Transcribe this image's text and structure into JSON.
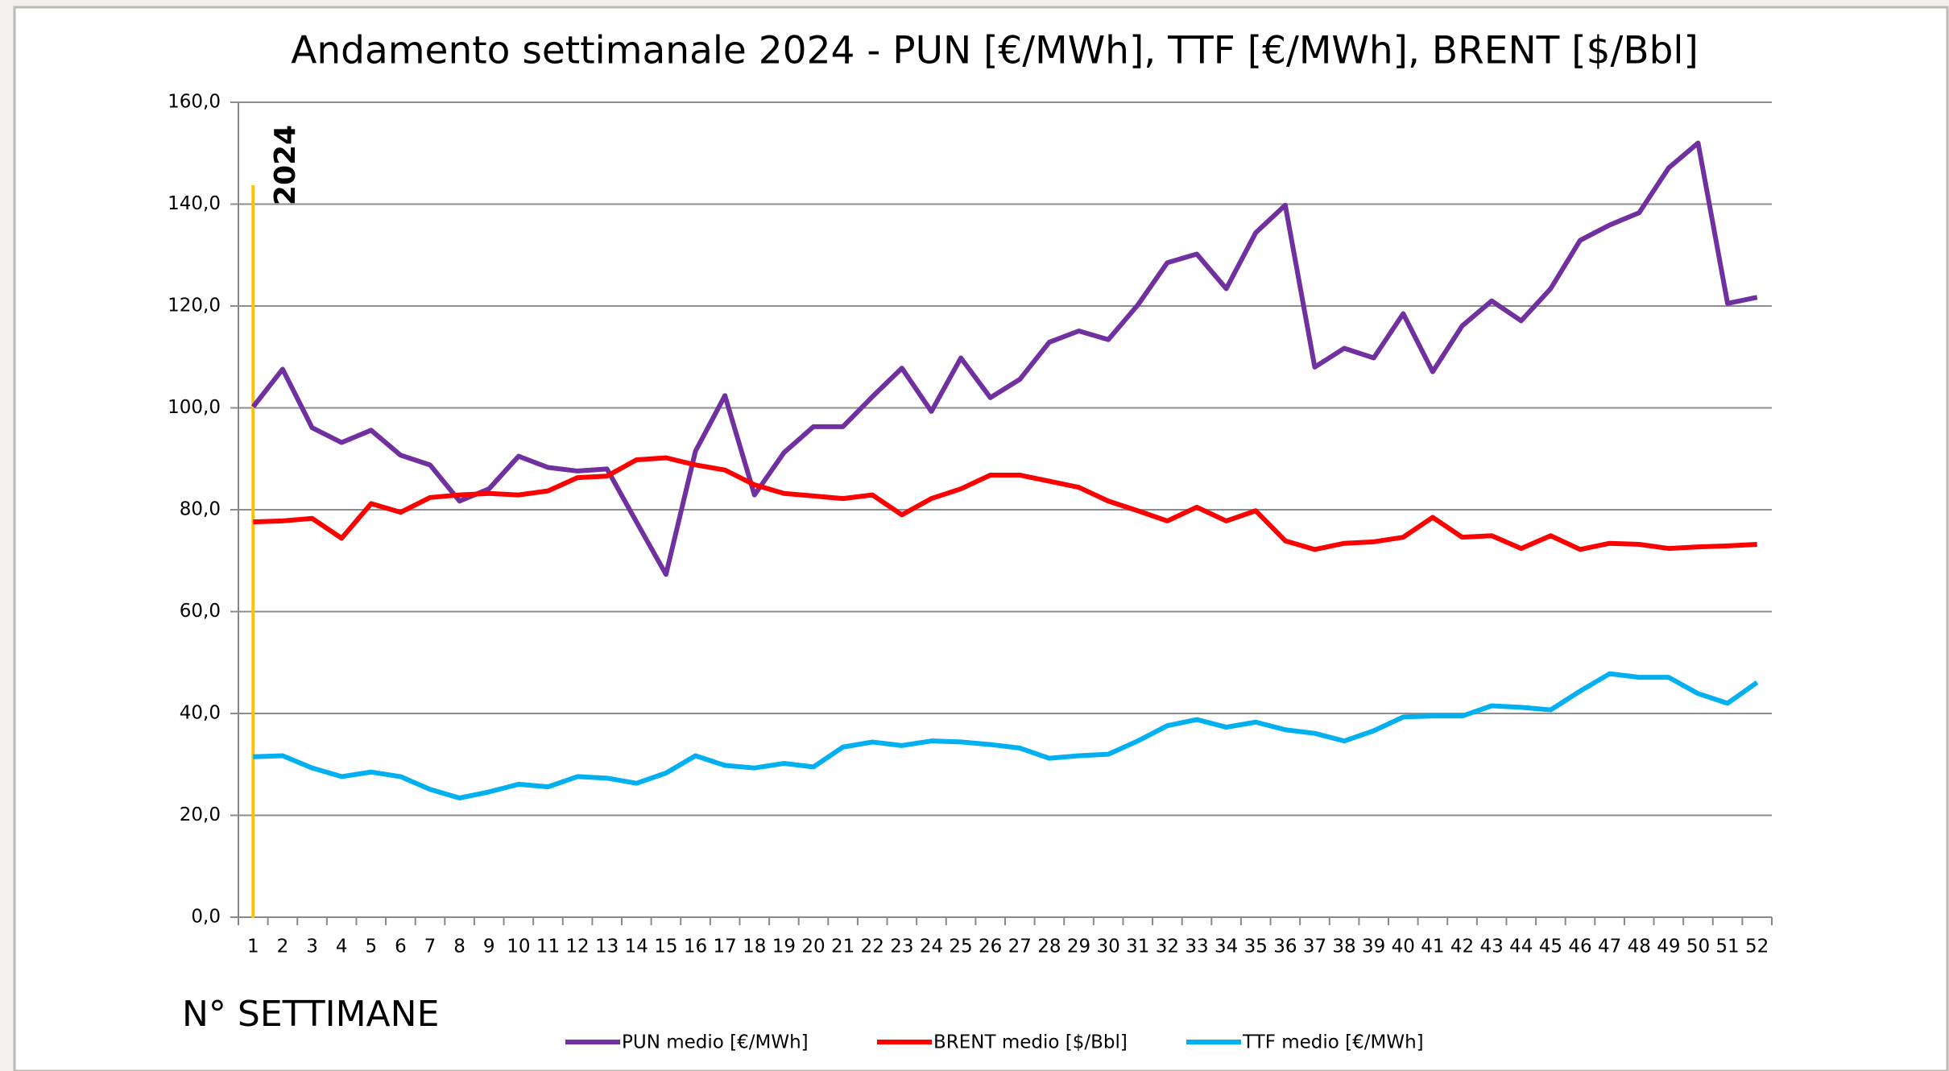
{
  "chart_data": {
    "type": "line",
    "title": "Andamento settimanale 2024 - PUN [€/MWh], TTF [€/MWh], BRENT [$/Bbl]",
    "x_label": "N° SETTIMANE",
    "annotation": "2024",
    "categories": [
      1,
      2,
      3,
      4,
      5,
      6,
      7,
      8,
      9,
      10,
      11,
      12,
      13,
      14,
      15,
      16,
      17,
      18,
      19,
      20,
      21,
      22,
      23,
      24,
      25,
      26,
      27,
      28,
      29,
      30,
      31,
      32,
      33,
      34,
      35,
      36,
      37,
      38,
      39,
      40,
      41,
      42,
      43,
      44,
      45,
      46,
      47,
      48,
      49,
      50,
      51,
      52
    ],
    "series": [
      {
        "name": "PUN medio [€/MWh]",
        "color": "#7030a0",
        "values": [
          100.2,
          107.6,
          96.1,
          93.2,
          95.6,
          90.7,
          88.8,
          81.7,
          84.1,
          90.5,
          88.3,
          87.6,
          88.0,
          77.6,
          67.3,
          91.5,
          102.4,
          82.9,
          91.2,
          96.3,
          96.3,
          102.2,
          107.8,
          99.3,
          109.8,
          102.0,
          105.6,
          112.9,
          115.1,
          113.4,
          120.2,
          128.5,
          130.2,
          123.4,
          134.4,
          139.8,
          108.0,
          111.7,
          109.8,
          118.5,
          107.1,
          116.1,
          121.0,
          117.1,
          123.4,
          132.9,
          135.9,
          138.3,
          147.1,
          152.0,
          120.5,
          121.7
        ]
      },
      {
        "name": "BRENT medio [$/Bbl]",
        "color": "#ff0000",
        "values": [
          77.6,
          77.8,
          78.3,
          74.4,
          81.2,
          79.5,
          82.4,
          82.9,
          83.2,
          82.9,
          83.7,
          86.3,
          86.6,
          89.8,
          90.2,
          88.8,
          87.8,
          84.9,
          83.2,
          82.7,
          82.2,
          82.9,
          79.0,
          82.2,
          84.1,
          86.8,
          86.8,
          85.6,
          84.4,
          81.7,
          79.8,
          77.8,
          80.5,
          77.8,
          79.8,
          73.9,
          72.2,
          73.4,
          73.7,
          74.6,
          78.5,
          74.6,
          74.9,
          72.4,
          74.9,
          72.2,
          73.4,
          73.2,
          72.4,
          72.7,
          72.9,
          73.2
        ]
      },
      {
        "name": "TTF medio [€/MWh]",
        "color": "#00b0f0",
        "values": [
          31.5,
          31.7,
          29.3,
          27.6,
          28.5,
          27.6,
          25.1,
          23.4,
          24.6,
          26.1,
          25.6,
          27.6,
          27.3,
          26.3,
          28.3,
          31.7,
          29.8,
          29.3,
          30.2,
          29.5,
          33.4,
          34.4,
          33.7,
          34.6,
          34.4,
          33.9,
          33.2,
          31.2,
          31.7,
          32.0,
          34.6,
          37.6,
          38.8,
          37.3,
          38.3,
          36.8,
          36.1,
          34.6,
          36.6,
          39.3,
          39.5,
          39.5,
          41.5,
          41.2,
          40.7,
          44.4,
          47.8,
          47.1,
          47.1,
          43.9,
          42.0,
          46.1
        ]
      }
    ],
    "ylim": [
      0,
      160
    ],
    "yticks": [
      {
        "value": 0,
        "label": "0,0"
      },
      {
        "value": 20,
        "label": "20,0"
      },
      {
        "value": 40,
        "label": "40,0"
      },
      {
        "value": 60,
        "label": "60,0"
      },
      {
        "value": 80,
        "label": "80,0"
      },
      {
        "value": 100,
        "label": "100,0"
      },
      {
        "value": 120,
        "label": "120,0"
      },
      {
        "value": 140,
        "label": "140,0"
      },
      {
        "value": 160,
        "label": "160,0"
      }
    ],
    "grid": true,
    "legend": "bottom"
  }
}
